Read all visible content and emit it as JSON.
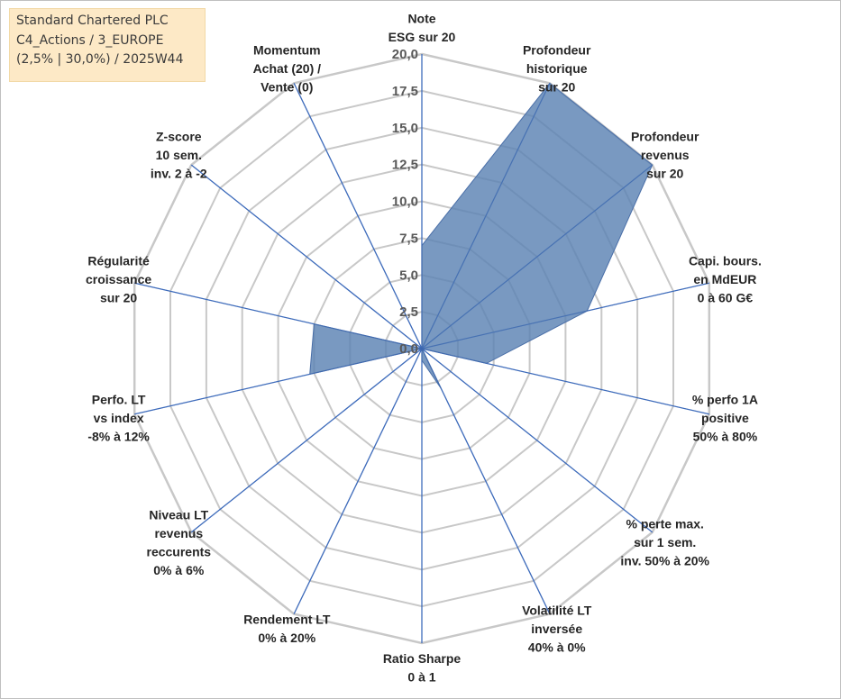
{
  "info": {
    "line1": "Standard Chartered PLC",
    "line2": "C4_Actions / 3_EUROPE",
    "line3": "(2,5% | 30,0%) / 2025W44"
  },
  "chart_data": {
    "type": "radar",
    "rmin": 0,
    "rmax": 20,
    "ticks": [
      "0,0",
      "2,5",
      "5,0",
      "7,5",
      "10,0",
      "12,5",
      "15,0",
      "17,5",
      "20,0"
    ],
    "axes": [
      {
        "label": [
          "Note",
          "ESG sur 20"
        ]
      },
      {
        "label": [
          "Profondeur",
          "historique",
          "sur 20"
        ]
      },
      {
        "label": [
          "Profondeur",
          "revenus",
          "sur 20"
        ]
      },
      {
        "label": [
          "Capi. bours.",
          "en MdEUR",
          "0 à 60 G€"
        ]
      },
      {
        "label": [
          "% perfo 1A",
          "positive",
          "50% à 80%"
        ]
      },
      {
        "label": [
          "% perte max.",
          "sur 1 sem.",
          "inv. 50% à 20%"
        ]
      },
      {
        "label": [
          "Volatilité LT",
          "inversée",
          "40% à 0%"
        ]
      },
      {
        "label": [
          "Ratio Sharpe",
          "0 à 1"
        ]
      },
      {
        "label": [
          "Rendement LT",
          "0% à 20%"
        ]
      },
      {
        "label": [
          "Niveau LT",
          "revenus",
          "reccurents",
          "0% à 6%"
        ]
      },
      {
        "label": [
          "Perfo. LT",
          "vs index",
          "-8% à 12%"
        ]
      },
      {
        "label": [
          "Régularité",
          "croissance",
          "sur 20"
        ]
      },
      {
        "label": [
          "Z-score",
          "10 sem.",
          "inv. 2 à -2"
        ]
      },
      {
        "label": [
          "Momentum",
          "Achat (20) /",
          "Vente (0)"
        ]
      }
    ],
    "series": [
      {
        "values": [
          7,
          20,
          20,
          11.5,
          4.5,
          0,
          3,
          0.8,
          0,
          0,
          7.8,
          7.5,
          0,
          0
        ],
        "color": "#5b82b3"
      }
    ],
    "grid": true,
    "legend": "none"
  }
}
